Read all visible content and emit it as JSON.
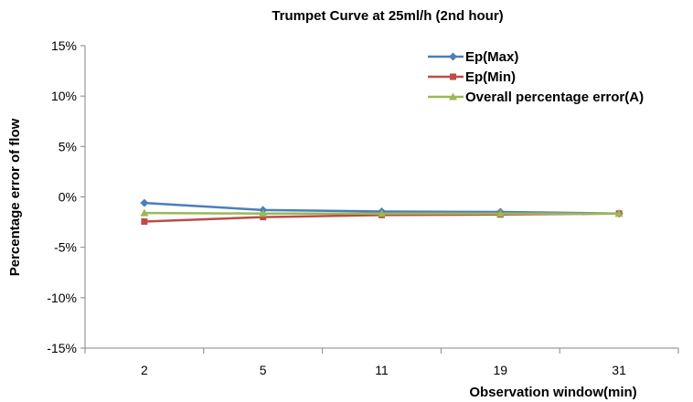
{
  "chart_data": {
    "type": "line",
    "title": "Trumpet Curve at 25ml/h (2nd hour)",
    "xlabel": "Observation window(min)",
    "ylabel": "Percentage error of flow",
    "categories": [
      "2",
      "5",
      "11",
      "19",
      "31"
    ],
    "ylim": [
      -15,
      15
    ],
    "yticks": [
      15,
      10,
      5,
      0,
      -5,
      -10,
      -15
    ],
    "ytick_labels": [
      "15%",
      "10%",
      "5%",
      "0%",
      "-5%",
      "-10%",
      "-15%"
    ],
    "grid": false,
    "legend": "top-right",
    "series": [
      {
        "name": "Ep(Max)",
        "values": [
          -0.6,
          -1.3,
          -1.45,
          -1.5,
          -1.65
        ],
        "color": "#4A7EBB",
        "marker": "diamond"
      },
      {
        "name": "Ep(Min)",
        "values": [
          -2.45,
          -2.0,
          -1.8,
          -1.75,
          -1.65
        ],
        "color": "#BE4B48",
        "marker": "square"
      },
      {
        "name": "Overall percentage error(A)",
        "values": [
          -1.6,
          -1.65,
          -1.65,
          -1.65,
          -1.65
        ],
        "color": "#98B954",
        "marker": "triangle"
      }
    ]
  }
}
